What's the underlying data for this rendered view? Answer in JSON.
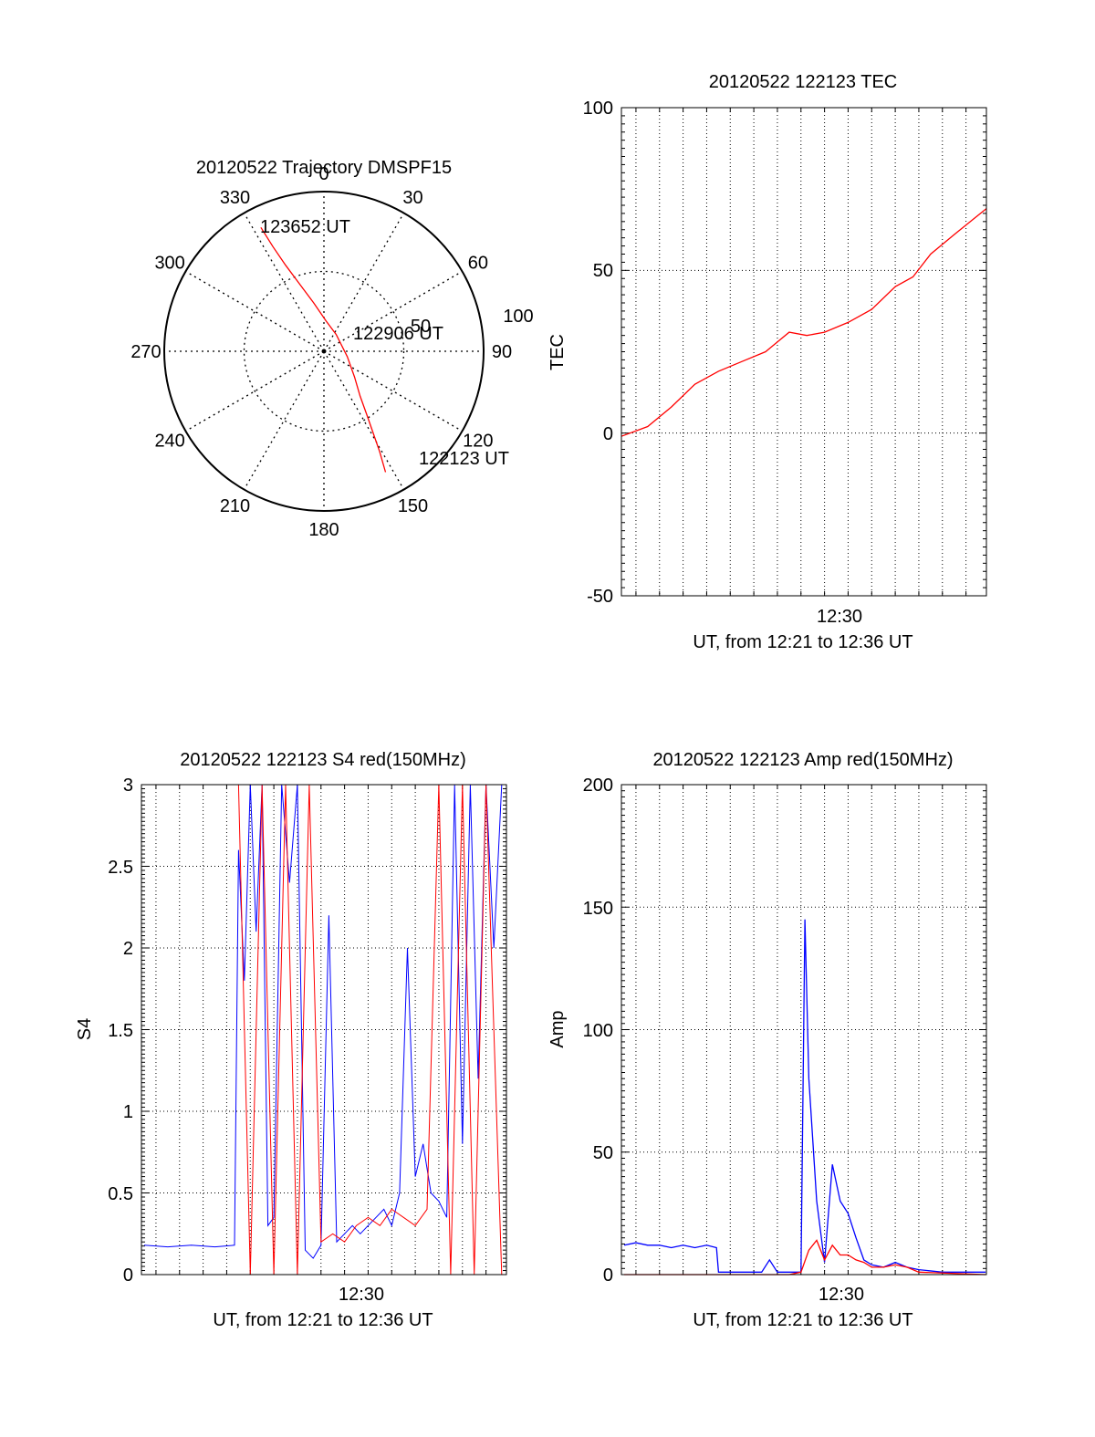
{
  "chart_data": [
    {
      "type": "polar",
      "title": "20120522 Trajectory DMSPF15",
      "azimuth_labels": [
        "0",
        "30",
        "60",
        "90",
        "120",
        "150",
        "180",
        "210",
        "240",
        "270",
        "300",
        "330"
      ],
      "radial_rings": [
        50,
        100
      ],
      "radial_labels": [
        "50",
        "100"
      ],
      "max_radius": 100,
      "colors": {
        "track": "#ff0000"
      },
      "track": {
        "points": [
          {
            "az": 153,
            "zenith": 85
          },
          {
            "az": 151,
            "zenith": 72
          },
          {
            "az": 149,
            "zenith": 60
          },
          {
            "az": 146,
            "zenith": 48
          },
          {
            "az": 141,
            "zenith": 36
          },
          {
            "az": 130,
            "zenith": 25
          },
          {
            "az": 103,
            "zenith": 15
          },
          {
            "az": 36,
            "zenith": 13
          },
          {
            "az": 4,
            "zenith": 19
          },
          {
            "az": 348,
            "zenith": 31
          },
          {
            "az": 340,
            "zenith": 45
          },
          {
            "az": 336,
            "zenith": 59
          },
          {
            "az": 334,
            "zenith": 73
          },
          {
            "az": 333,
            "zenith": 87
          }
        ],
        "labels": [
          "122123 UT",
          "122906 UT",
          "123652 UT"
        ]
      }
    },
    {
      "type": "line",
      "title": "20120522 122123 TEC",
      "xlabel": "UT, from 12:21 to 12:36 UT",
      "ylabel": "TEC",
      "x_tick_label": "12:30",
      "xlim": [
        "12:21:23",
        "12:36:52"
      ],
      "ylim": [
        -50,
        100
      ],
      "yticks": [
        "-50",
        "0",
        "50",
        "100"
      ],
      "grid": true,
      "series": [
        {
          "color": "#ff0000",
          "x": [
            "12:21:23",
            "12:22:30",
            "12:23:30",
            "12:24:30",
            "12:25:30",
            "12:26:30",
            "12:27:30",
            "12:28:30",
            "12:29:15",
            "12:30:00",
            "12:31:00",
            "12:32:00",
            "12:33:00",
            "12:33:45",
            "12:34:30",
            "12:35:30",
            "12:36:52"
          ],
          "y": [
            -1,
            2,
            8,
            15,
            19,
            22,
            25,
            31,
            30,
            31,
            34,
            38,
            45,
            48,
            55,
            61,
            69
          ]
        }
      ]
    },
    {
      "type": "line",
      "title": "20120522 122123 S4 red(150MHz)",
      "xlabel": "UT, from 12:21 to 12:36 UT",
      "ylabel": "S4",
      "x_tick_label": "12:30",
      "xlim": [
        "12:21:23",
        "12:36:52"
      ],
      "ylim": [
        0,
        3
      ],
      "yticks": [
        "0",
        "0.5",
        "1",
        "1.5",
        "2",
        "2.5",
        "3"
      ],
      "grid": true,
      "series": [
        {
          "color": "#0000ff",
          "x": [
            "12:21:30",
            "12:22:30",
            "12:23:30",
            "12:24:30",
            "12:25:20",
            "12:25:30",
            "12:25:45",
            "12:26:00",
            "12:26:15",
            "12:26:30",
            "12:26:45",
            "12:27:00",
            "12:27:20",
            "12:27:40",
            "12:28:00",
            "12:28:20",
            "12:28:40",
            "12:29:00",
            "12:29:20",
            "12:29:40",
            "12:30:00",
            "12:30:20",
            "12:30:40",
            "12:31:00",
            "12:31:20",
            "12:31:40",
            "12:32:00",
            "12:32:20",
            "12:32:40",
            "12:33:00",
            "12:33:20",
            "12:33:40",
            "12:34:00",
            "12:34:20",
            "12:34:40",
            "12:35:00",
            "12:35:20",
            "12:35:40",
            "12:36:00",
            "12:36:20",
            "12:36:40"
          ],
          "y": [
            0.18,
            0.17,
            0.18,
            0.17,
            0.18,
            2.6,
            1.8,
            3.0,
            2.1,
            3.0,
            0.3,
            0.35,
            3.0,
            2.4,
            3.0,
            0.15,
            0.1,
            0.18,
            2.2,
            0.2,
            0.25,
            0.3,
            0.25,
            0.3,
            0.35,
            0.4,
            0.3,
            0.5,
            2.0,
            0.6,
            0.8,
            0.5,
            0.45,
            0.35,
            3.0,
            0.8,
            3.0,
            1.2,
            3.0,
            2.0,
            3.0
          ]
        },
        {
          "color": "#ff0000",
          "x": [
            "12:25:30",
            "12:26:00",
            "12:26:30",
            "12:27:00",
            "12:27:30",
            "12:28:00",
            "12:28:30",
            "12:29:00",
            "12:29:30",
            "12:30:00",
            "12:30:30",
            "12:31:00",
            "12:31:30",
            "12:32:00",
            "12:32:30",
            "12:33:00",
            "12:33:30",
            "12:34:00",
            "12:34:30",
            "12:35:00",
            "12:35:30",
            "12:36:00",
            "12:36:40"
          ],
          "y": [
            3.0,
            0.0,
            3.0,
            0.0,
            3.0,
            0.0,
            3.0,
            0.2,
            0.25,
            0.2,
            0.3,
            0.35,
            0.3,
            0.4,
            0.35,
            0.3,
            0.4,
            3.0,
            0.0,
            3.0,
            0.0,
            3.0,
            0.0
          ]
        }
      ]
    },
    {
      "type": "line",
      "title": "20120522 122123 Amp red(150MHz)",
      "xlabel": "UT, from 12:21 to 12:36 UT",
      "ylabel": "Amp",
      "x_tick_label": "12:30",
      "xlim": [
        "12:21:23",
        "12:36:52"
      ],
      "ylim": [
        0,
        200
      ],
      "yticks": [
        "0",
        "50",
        "100",
        "150",
        "200"
      ],
      "grid": true,
      "series": [
        {
          "color": "#0000ff",
          "x": [
            "12:21:30",
            "12:22:00",
            "12:22:30",
            "12:23:00",
            "12:23:30",
            "12:24:00",
            "12:24:30",
            "12:25:00",
            "12:25:25",
            "12:25:30",
            "12:26:00",
            "12:26:30",
            "12:27:00",
            "12:27:20",
            "12:27:40",
            "12:28:00",
            "12:28:20",
            "12:28:40",
            "12:29:00",
            "12:29:10",
            "12:29:20",
            "12:29:40",
            "12:30:00",
            "12:30:20",
            "12:30:40",
            "12:31:00",
            "12:31:20",
            "12:31:40",
            "12:32:00",
            "12:32:30",
            "12:33:00",
            "12:33:30",
            "12:34:00",
            "12:35:00",
            "12:36:00",
            "12:36:50"
          ],
          "y": [
            12,
            13,
            12,
            12,
            11,
            12,
            11,
            12,
            11,
            1,
            1,
            1,
            1,
            1,
            6,
            1,
            1,
            1,
            1,
            145,
            80,
            30,
            5,
            45,
            30,
            25,
            15,
            6,
            4,
            3,
            5,
            3,
            2,
            1,
            1,
            1
          ]
        },
        {
          "color": "#ff0000",
          "x": [
            "12:21:30",
            "12:25:25",
            "12:26:00",
            "12:27:00",
            "12:28:00",
            "12:28:30",
            "12:29:00",
            "12:29:20",
            "12:29:40",
            "12:30:00",
            "12:30:20",
            "12:30:40",
            "12:31:00",
            "12:31:20",
            "12:31:40",
            "12:32:00",
            "12:32:30",
            "12:33:00",
            "12:33:30",
            "12:34:00",
            "12:36:50"
          ],
          "y": [
            0,
            0,
            0,
            0,
            0,
            0,
            1,
            10,
            14,
            6,
            12,
            8,
            8,
            6,
            5,
            3,
            3,
            4,
            3,
            1,
            0
          ]
        }
      ]
    }
  ]
}
